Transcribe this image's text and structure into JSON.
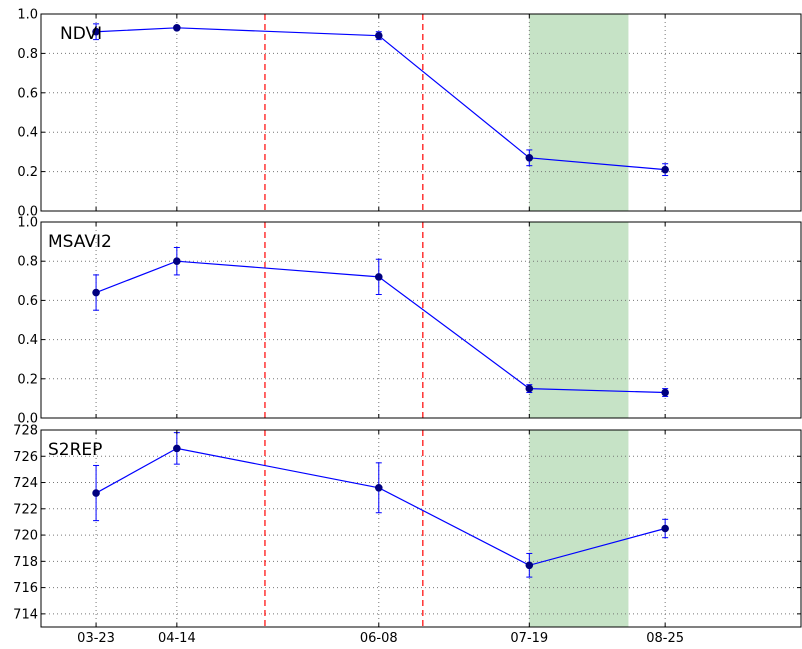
{
  "chart_data": {
    "type": "line",
    "x_tick_labels": [
      "03-23",
      "04-14",
      "06-08",
      "07-19",
      "08-25"
    ],
    "x_ticks": [
      "2016-03-23",
      "2016-04-14",
      "2016-06-08",
      "2016-07-19",
      "2016-08-25"
    ],
    "xlim": [
      "2016-03-08",
      "2016-10-01"
    ],
    "vertical_markers": [
      "2016-05-08",
      "2016-06-20"
    ],
    "shaded_interval": [
      "2016-07-19",
      "2016-08-15"
    ],
    "grid": true,
    "colors": {
      "series": "#0000ff",
      "markers": "#00007f",
      "vertical_markers": "#ff0000",
      "shaded": "#c6e3c6",
      "grid": "#777777"
    },
    "panels": [
      {
        "title": "NDVI",
        "ylim": [
          0,
          1.0
        ],
        "y_ticks": [
          "0.0",
          "0.2",
          "0.4",
          "0.6",
          "0.8",
          "1.0"
        ],
        "points": [
          {
            "x": "2016-03-23",
            "y": 0.91,
            "err": 0.04
          },
          {
            "x": "2016-04-14",
            "y": 0.93,
            "err": 0.01
          },
          {
            "x": "2016-06-08",
            "y": 0.89,
            "err": 0.02
          },
          {
            "x": "2016-07-19",
            "y": 0.27,
            "err": 0.04
          },
          {
            "x": "2016-08-25",
            "y": 0.21,
            "err": 0.03
          }
        ]
      },
      {
        "title": "MSAVI2",
        "ylim": [
          0,
          1.0
        ],
        "y_ticks": [
          "0.0",
          "0.2",
          "0.4",
          "0.6",
          "0.8",
          "1.0"
        ],
        "points": [
          {
            "x": "2016-03-23",
            "y": 0.64,
            "err": 0.09
          },
          {
            "x": "2016-04-14",
            "y": 0.8,
            "err": 0.07
          },
          {
            "x": "2016-06-08",
            "y": 0.72,
            "err": 0.09
          },
          {
            "x": "2016-07-19",
            "y": 0.15,
            "err": 0.02
          },
          {
            "x": "2016-08-25",
            "y": 0.13,
            "err": 0.02
          }
        ]
      },
      {
        "title": "S2REP",
        "ylim": [
          713,
          728
        ],
        "y_ticks": [
          "714",
          "716",
          "718",
          "720",
          "722",
          "724",
          "726",
          "728"
        ],
        "points": [
          {
            "x": "2016-03-23",
            "y": 723.2,
            "err": 2.1
          },
          {
            "x": "2016-04-14",
            "y": 726.6,
            "err": 1.2
          },
          {
            "x": "2016-06-08",
            "y": 723.6,
            "err": 1.9
          },
          {
            "x": "2016-07-19",
            "y": 717.7,
            "err": 0.9
          },
          {
            "x": "2016-08-25",
            "y": 720.5,
            "err": 0.7
          }
        ]
      }
    ]
  }
}
